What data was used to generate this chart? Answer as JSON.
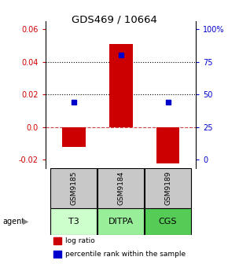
{
  "title": "GDS469 / 10664",
  "samples": [
    "GSM9185",
    "GSM9184",
    "GSM9189"
  ],
  "agents": [
    "T3",
    "DITPA",
    "CGS"
  ],
  "log_ratios": [
    -0.012,
    0.051,
    -0.022
  ],
  "percentile_ranks": [
    44,
    80,
    44
  ],
  "bar_color": "#cc0000",
  "dot_color": "#0000cc",
  "ylim_left": [
    -0.025,
    0.065
  ],
  "yticks_left": [
    -0.02,
    0.0,
    0.02,
    0.04,
    0.06
  ],
  "yticks_right": [
    0,
    25,
    50,
    75,
    100
  ],
  "yright_labels": [
    "0",
    "25",
    "50",
    "75",
    "100%"
  ],
  "hlines_dotted": [
    0.02,
    0.04
  ],
  "hline_dashed": 0.0,
  "sample_box_color": "#c8c8c8",
  "agent_bg_colors": [
    "#ccffcc",
    "#99ee99",
    "#55cc55"
  ],
  "bar_width": 0.5,
  "x_positions": [
    0,
    1,
    2
  ],
  "left_axis_color": "#cc0000",
  "right_axis_color": "#0000cc",
  "legend_items": [
    {
      "color": "#cc0000",
      "label": "log ratio"
    },
    {
      "color": "#0000cc",
      "label": "percentile rank within the sample"
    }
  ]
}
